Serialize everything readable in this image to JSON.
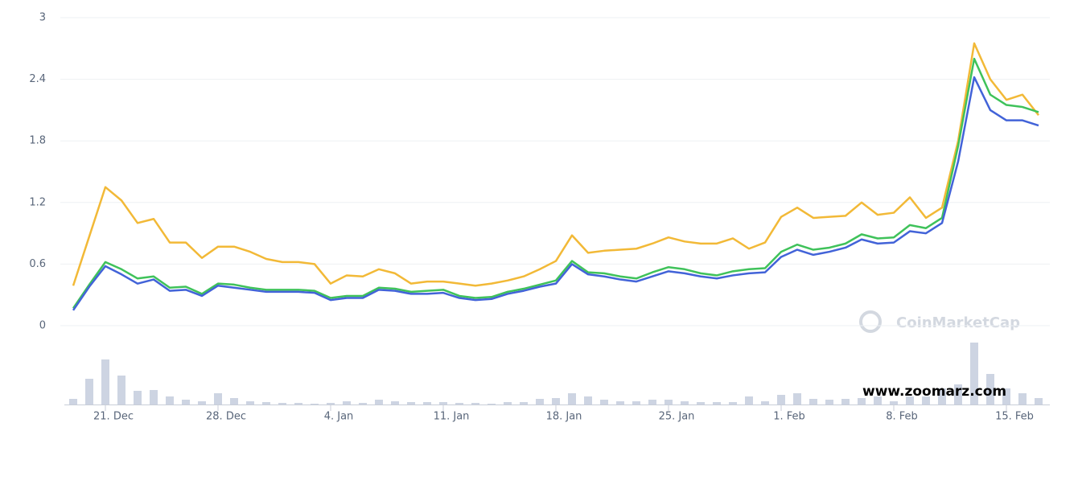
{
  "chart_data": {
    "type": "line",
    "categories": [
      null,
      null,
      "21. Dec",
      null,
      null,
      null,
      null,
      null,
      null,
      "28. Dec",
      null,
      null,
      null,
      null,
      null,
      null,
      "4. Jan",
      null,
      null,
      null,
      null,
      null,
      null,
      "11. Jan",
      null,
      null,
      null,
      null,
      null,
      null,
      "18. Jan",
      null,
      null,
      null,
      null,
      null,
      null,
      "25. Jan",
      null,
      null,
      null,
      null,
      null,
      null,
      "1. Feb",
      null,
      null,
      null,
      null,
      null,
      null,
      "8. Feb",
      null,
      null,
      null,
      null,
      null,
      null,
      "15. Feb",
      null,
      null
    ],
    "series": [
      {
        "color": "#f2b937",
        "values": [
          0.39,
          0.87,
          1.35,
          1.22,
          1.0,
          1.04,
          0.81,
          0.81,
          0.66,
          0.77,
          0.77,
          0.72,
          0.65,
          0.62,
          0.62,
          0.6,
          0.41,
          0.49,
          0.48,
          0.55,
          0.51,
          0.41,
          0.43,
          0.43,
          0.41,
          0.39,
          0.41,
          0.44,
          0.48,
          0.55,
          0.63,
          0.88,
          0.71,
          0.73,
          0.74,
          0.75,
          0.8,
          0.86,
          0.82,
          0.8,
          0.8,
          0.85,
          0.75,
          0.81,
          1.06,
          1.15,
          1.05,
          1.06,
          1.07,
          1.2,
          1.08,
          1.1,
          1.25,
          1.05,
          1.15,
          1.8,
          2.75,
          2.4,
          2.2,
          2.25,
          2.05
        ]
      },
      {
        "color": "#3fc25a",
        "values": [
          0.17,
          0.4,
          0.62,
          0.55,
          0.46,
          0.48,
          0.37,
          0.38,
          0.31,
          0.41,
          0.4,
          0.37,
          0.35,
          0.35,
          0.35,
          0.34,
          0.27,
          0.29,
          0.29,
          0.37,
          0.36,
          0.33,
          0.34,
          0.35,
          0.29,
          0.27,
          0.28,
          0.33,
          0.36,
          0.4,
          0.44,
          0.63,
          0.52,
          0.51,
          0.48,
          0.46,
          0.52,
          0.57,
          0.55,
          0.51,
          0.49,
          0.53,
          0.55,
          0.56,
          0.72,
          0.79,
          0.74,
          0.76,
          0.8,
          0.89,
          0.85,
          0.86,
          0.98,
          0.95,
          1.05,
          1.75,
          2.6,
          2.25,
          2.15,
          2.13,
          2.08
        ]
      },
      {
        "color": "#4263d8",
        "values": [
          0.15,
          0.38,
          0.58,
          0.5,
          0.41,
          0.45,
          0.34,
          0.35,
          0.29,
          0.39,
          0.37,
          0.35,
          0.33,
          0.33,
          0.33,
          0.32,
          0.25,
          0.27,
          0.27,
          0.35,
          0.34,
          0.31,
          0.31,
          0.32,
          0.27,
          0.25,
          0.26,
          0.31,
          0.34,
          0.38,
          0.41,
          0.6,
          0.5,
          0.48,
          0.45,
          0.43,
          0.48,
          0.53,
          0.51,
          0.48,
          0.46,
          0.49,
          0.51,
          0.52,
          0.67,
          0.74,
          0.69,
          0.72,
          0.76,
          0.84,
          0.8,
          0.81,
          0.92,
          0.9,
          1.0,
          1.6,
          2.42,
          2.1,
          2.0,
          2.0,
          1.95
        ]
      }
    ],
    "volume": {
      "color": "#cdd4e2",
      "values": [
        7,
        32,
        56,
        36,
        17,
        18,
        10,
        6,
        4,
        14,
        8,
        4,
        3,
        2,
        2,
        1,
        2,
        4,
        2,
        6,
        4,
        3,
        3,
        3,
        2,
        2,
        1,
        3,
        3,
        7,
        8,
        14,
        10,
        6,
        4,
        4,
        6,
        6,
        4,
        3,
        3,
        3,
        10,
        4,
        12,
        14,
        7,
        6,
        7,
        8,
        10,
        4,
        10,
        10,
        20,
        25,
        77,
        38,
        20,
        14,
        8
      ]
    },
    "ylim": [
      0,
      3
    ],
    "yticks": [
      0,
      0.6,
      1.2,
      1.8,
      2.4,
      3
    ],
    "grid": true,
    "watermark": "CoinMarketCap",
    "annotation": "www.zoomarz.com"
  }
}
